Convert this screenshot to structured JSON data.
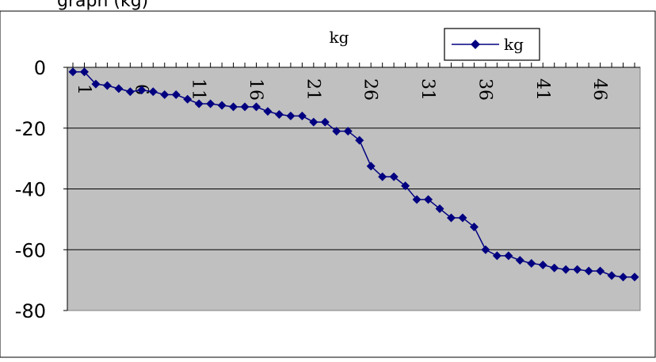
{
  "header_text": "graph (kg)",
  "chart_data": {
    "type": "line",
    "title": "kg",
    "xlabel": "",
    "ylabel": "",
    "legend": {
      "entries": [
        "kg"
      ],
      "placement": "top-right"
    },
    "grid": true,
    "xlim": [
      1,
      50
    ],
    "ylim": [
      -80,
      0
    ],
    "x_tick_labels": [
      "1",
      "6",
      "11",
      "16",
      "21",
      "26",
      "31",
      "36",
      "41",
      "46"
    ],
    "y_tick_labels": [
      "0",
      "-20",
      "-40",
      "-60",
      "-80"
    ],
    "series": [
      {
        "name": "kg",
        "color": "#000080",
        "marker": "diamond",
        "x": [
          1,
          2,
          3,
          4,
          5,
          6,
          7,
          8,
          9,
          10,
          11,
          12,
          13,
          14,
          15,
          16,
          17,
          18,
          19,
          20,
          21,
          22,
          23,
          24,
          25,
          26,
          27,
          28,
          29,
          30,
          31,
          32,
          33,
          34,
          35,
          36,
          37,
          38,
          39,
          40,
          41,
          42,
          43,
          44,
          45,
          46,
          47,
          48,
          49,
          50
        ],
        "values": [
          -1.5,
          -1.5,
          -5.5,
          -6,
          -7,
          -8,
          -7.5,
          -8,
          -9,
          -9,
          -10.5,
          -12,
          -12,
          -12.5,
          -13,
          -13,
          -13,
          -14.5,
          -15.5,
          -16,
          -16,
          -18,
          -18,
          -21,
          -21,
          -24,
          -32.5,
          -36,
          -36,
          -39,
          -43.5,
          -43.5,
          -46.5,
          -49.5,
          -49.5,
          -52.5,
          -60,
          -62,
          -62,
          -63.5,
          -64.5,
          -65,
          -66,
          -66.5,
          -66.5,
          -67,
          -67,
          -68.5,
          -69,
          -69
        ]
      }
    ]
  }
}
